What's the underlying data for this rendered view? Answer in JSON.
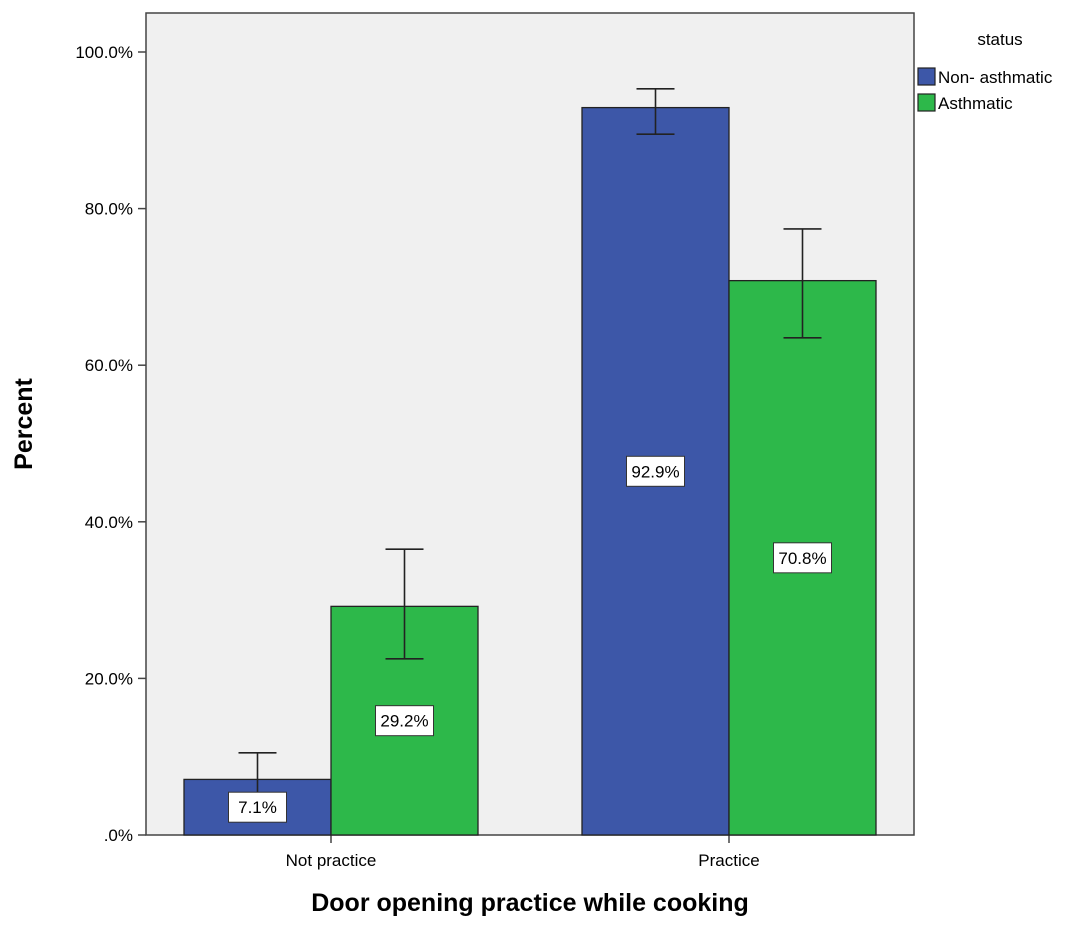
{
  "chart_data": {
    "type": "bar",
    "xlabel": "Door opening practice while cooking",
    "ylabel": "Percent",
    "categories": [
      "Not practice",
      "Practice"
    ],
    "ylim": [
      0,
      105
    ],
    "yticks": [
      0,
      20,
      40,
      60,
      80,
      100
    ],
    "ytick_labels": [
      ".0%",
      "20.0%",
      "40.0%",
      "60.0%",
      "80.0%",
      "100.0%"
    ],
    "series": [
      {
        "name": "Non- asthmatic",
        "color": "#3d57a8",
        "values": [
          7.1,
          92.9
        ],
        "labels": [
          "7.1%",
          "92.9%"
        ],
        "error_low": [
          5.0,
          89.5
        ],
        "error_high": [
          10.5,
          95.3
        ]
      },
      {
        "name": "Asthmatic",
        "color": "#2db84a",
        "values": [
          29.2,
          70.8
        ],
        "labels": [
          "29.2%",
          "70.8%"
        ],
        "error_low": [
          22.5,
          63.5
        ],
        "error_high": [
          36.5,
          77.4
        ]
      }
    ],
    "legend": {
      "title": "status",
      "position": "right"
    },
    "plot_background": "#f0f0f0",
    "grid": false
  }
}
